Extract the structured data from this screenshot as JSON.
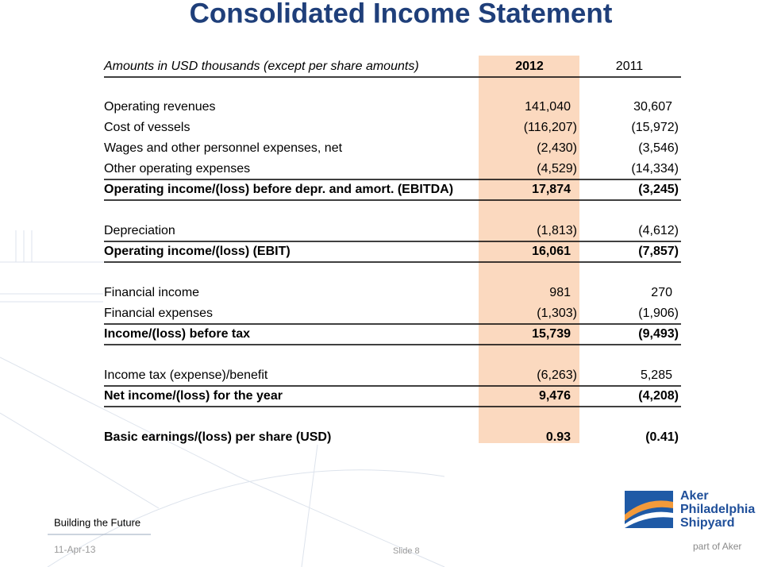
{
  "title": "Consolidated Income Statement",
  "table": {
    "header": [
      "Amounts in USD thousands (except per share amounts)",
      "2012",
      "2011"
    ],
    "sections": [
      {
        "rows": [
          [
            "Operating revenues",
            "141,040",
            "30,607"
          ],
          [
            "Cost of vessels",
            "(116,207)",
            "(15,972)"
          ],
          [
            "Wages and other personnel expenses, net",
            "(2,430)",
            "(3,546)"
          ],
          [
            "Other operating expenses",
            "(4,529)",
            "(14,334)"
          ]
        ],
        "total": [
          "Operating income/(loss) before depr. and amort. (EBITDA)",
          "17,874",
          "(3,245)"
        ]
      },
      {
        "rows": [
          [
            "Depreciation",
            "(1,813)",
            "(4,612)"
          ]
        ],
        "total": [
          "Operating income/(loss) (EBIT)",
          "16,061",
          "(7,857)"
        ]
      },
      {
        "rows": [
          [
            "Financial income",
            "981",
            "270"
          ],
          [
            "Financial expenses",
            "(1,303)",
            "(1,906)"
          ]
        ],
        "total": [
          "Income/(loss) before tax",
          "15,739",
          "(9,493)"
        ]
      },
      {
        "rows": [
          [
            "Income tax (expense)/benefit",
            "(6,263)",
            "5,285"
          ]
        ],
        "total": [
          "Net income/(loss) for the year",
          "9,476",
          "(4,208)"
        ]
      },
      {
        "rows": [],
        "total": [
          "Basic earnings/(loss) per share (USD)",
          "0.93",
          "(0.41)"
        ]
      }
    ]
  },
  "footer": {
    "tagline": "Building the Future",
    "date": "11-Apr-13",
    "slide": "Slide 8",
    "parent": "part of Aker"
  },
  "logo": [
    "Aker",
    "Philadelphia",
    "Shipyard"
  ]
}
